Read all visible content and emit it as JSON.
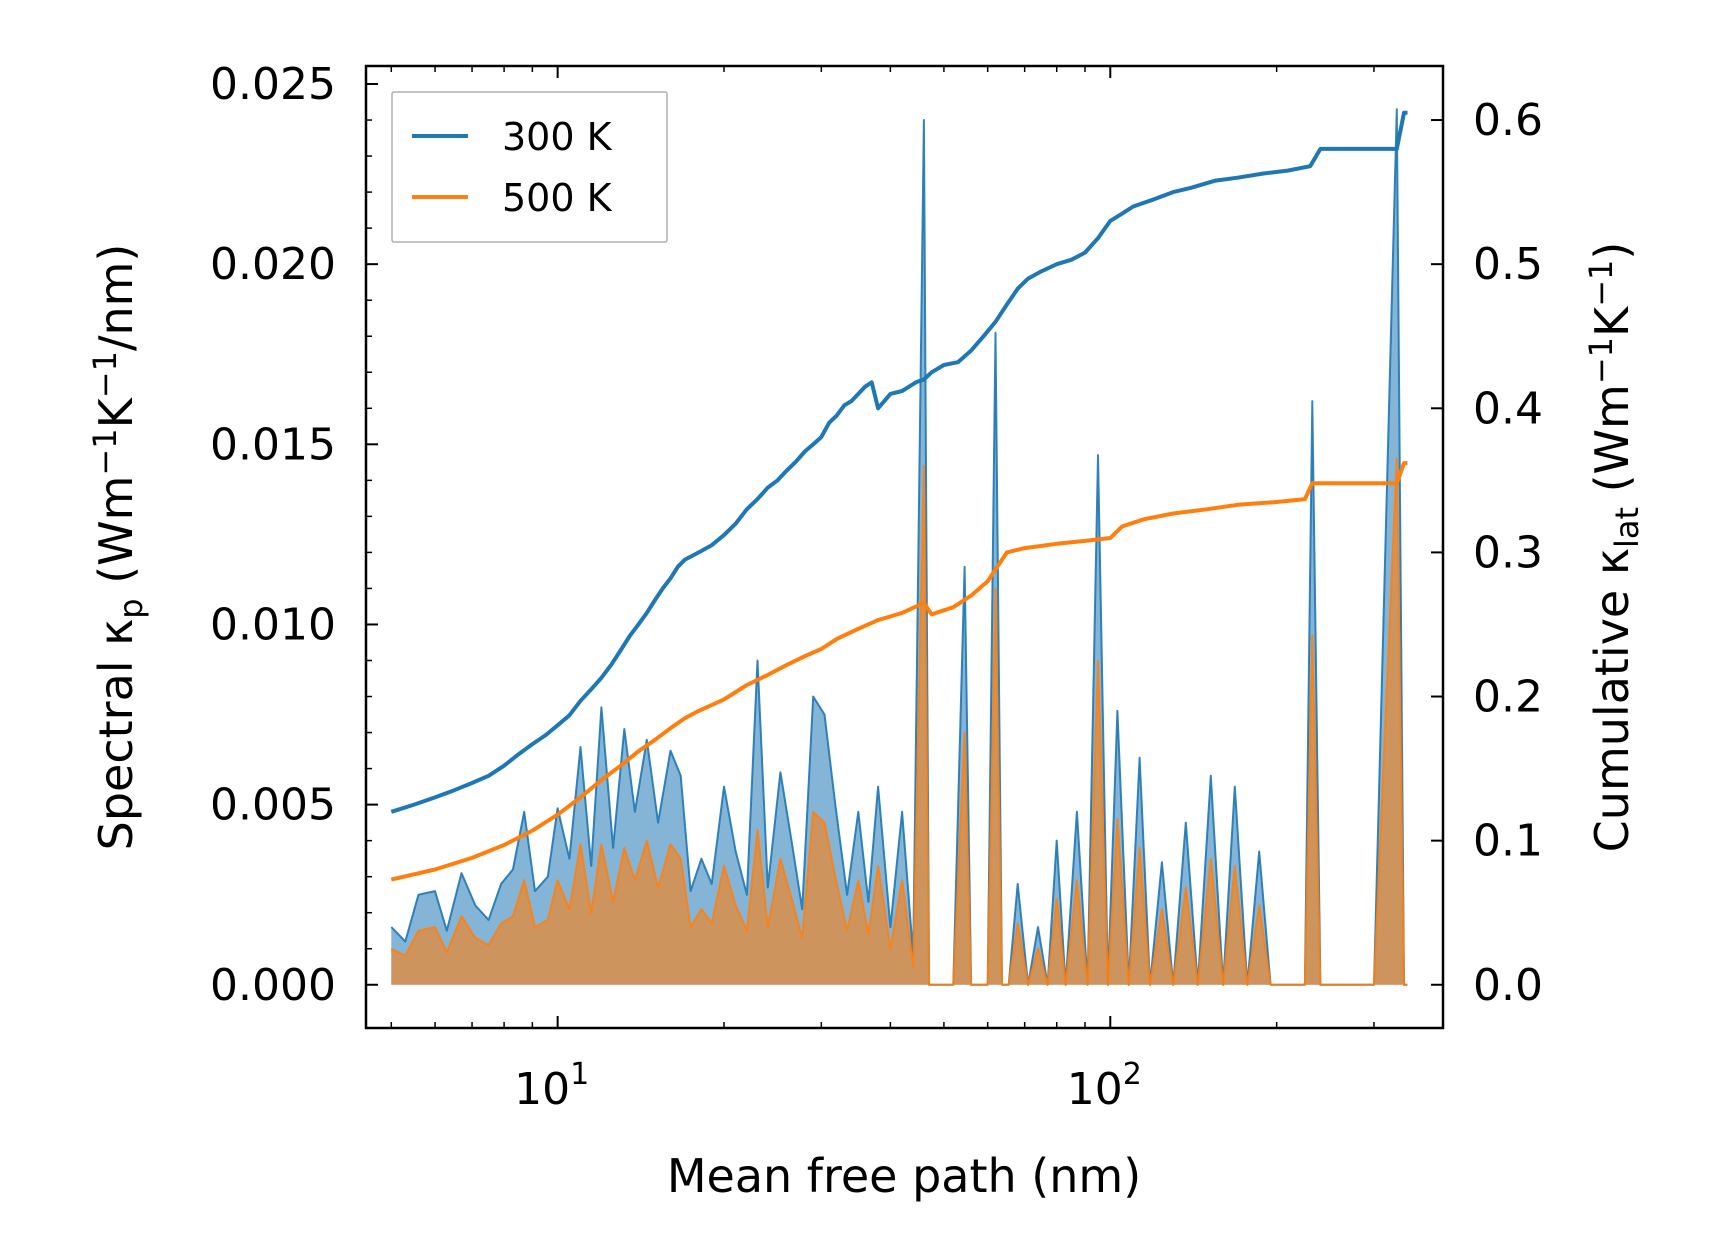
{
  "chart_data": {
    "type": "line",
    "title": "",
    "xlabel": "Mean free path (nm)",
    "ylabel_left": {
      "main": "Spectral κ",
      "sub": "p",
      "units_prefix": " (Wm",
      "exp1": "−1",
      "units_mid": "K",
      "exp2": "−1",
      "units_suffix": "/nm)"
    },
    "ylabel_right": {
      "main": "Cumulative κ",
      "sub": "lat",
      "units_prefix": " (Wm",
      "exp1": "−1",
      "units_mid": "K",
      "exp2": "−1",
      "units_suffix": ")"
    },
    "xscale": "log",
    "xlim": [
      4.5,
      400
    ],
    "ylim_left": [
      -0.0012,
      0.0255
    ],
    "ylim_right": [
      -0.03,
      0.6375
    ],
    "xticks": [
      {
        "value": 10,
        "base": "10",
        "exp": "1"
      },
      {
        "value": 100,
        "base": "10",
        "exp": "2"
      }
    ],
    "yticks_left": [
      {
        "value": 0.0,
        "label": "0.000"
      },
      {
        "value": 0.005,
        "label": "0.005"
      },
      {
        "value": 0.01,
        "label": "0.010"
      },
      {
        "value": 0.015,
        "label": "0.015"
      },
      {
        "value": 0.02,
        "label": "0.020"
      },
      {
        "value": 0.025,
        "label": "0.025"
      }
    ],
    "yticks_right": [
      {
        "value": 0.0,
        "label": "0.0"
      },
      {
        "value": 0.1,
        "label": "0.1"
      },
      {
        "value": 0.2,
        "label": "0.2"
      },
      {
        "value": 0.3,
        "label": "0.3"
      },
      {
        "value": 0.4,
        "label": "0.4"
      },
      {
        "value": 0.5,
        "label": "0.5"
      },
      {
        "value": 0.6,
        "label": "0.6"
      }
    ],
    "legend": {
      "placement": "top-left"
    },
    "series": [
      {
        "name": "300 K",
        "color": "#1f77b4",
        "spectral": {
          "axis": "left",
          "x": [
            5.0,
            5.3,
            5.6,
            6.0,
            6.3,
            6.7,
            7.1,
            7.5,
            7.9,
            8.3,
            8.7,
            9.1,
            9.6,
            10.0,
            10.5,
            11.0,
            11.5,
            12.0,
            12.6,
            13.2,
            13.8,
            14.5,
            15.2,
            16.0,
            16.7,
            17.4,
            18.2,
            19.0,
            20.0,
            21.0,
            22.0,
            23.0,
            24.0,
            25.3,
            26.5,
            27.7,
            29.0,
            30.4,
            31.8,
            33.4,
            35.0,
            36.5,
            38.0,
            40.0,
            42.0,
            44.0,
            46.0,
            47.0,
            48.5,
            50.0,
            52.0,
            54.5,
            56.0,
            58.0,
            60.0,
            62.0,
            63.7,
            65.5,
            68.0,
            71.0,
            74.0,
            77.0,
            80.0,
            83.0,
            87.0,
            91.0,
            95.0,
            99.0,
            103.0,
            108.0,
            113.0,
            118.0,
            124.0,
            130.0,
            137.0,
            144.0,
            152.0,
            160.0,
            168.0,
            177.0,
            186.0,
            195.0,
            205.0,
            215.0,
            225.0,
            232.0,
            240.0,
            250.0,
            300.0,
            330.0,
            340.0,
            345.0
          ],
          "y": [
            0.0016,
            0.0012,
            0.0025,
            0.0026,
            0.0015,
            0.0031,
            0.0022,
            0.0018,
            0.0028,
            0.0032,
            0.0048,
            0.0026,
            0.003,
            0.0049,
            0.0035,
            0.0066,
            0.0033,
            0.0077,
            0.0038,
            0.0071,
            0.0048,
            0.0068,
            0.0045,
            0.0065,
            0.0058,
            0.0026,
            0.0035,
            0.0028,
            0.0055,
            0.0037,
            0.0025,
            0.009,
            0.0027,
            0.0059,
            0.004,
            0.0021,
            0.008,
            0.0075,
            0.005,
            0.0025,
            0.0048,
            0.0023,
            0.0055,
            0.0016,
            0.0048,
            0.0008,
            0.024,
            0.0,
            0.0,
            0.0,
            0.0,
            0.0116,
            0.0,
            0.0,
            0.0,
            0.0181,
            0.0,
            0.0,
            0.0028,
            0.0,
            0.0016,
            0.0,
            0.004,
            0.0,
            0.0048,
            0.0,
            0.0147,
            0.0,
            0.0076,
            0.0,
            0.0063,
            0.0,
            0.0034,
            0.0,
            0.0045,
            0.0,
            0.0058,
            0.0,
            0.0055,
            0.0,
            0.0037,
            0.0,
            0.0,
            0.0,
            0.0,
            0.0162,
            0.0,
            0.0,
            0.0,
            0.0243,
            0.0,
            0.0
          ]
        },
        "cumulative": {
          "axis": "right",
          "x": [
            5.0,
            5.5,
            6.0,
            6.5,
            7.0,
            7.5,
            8.0,
            8.5,
            9.0,
            9.5,
            10.0,
            10.5,
            11.0,
            11.5,
            12.0,
            12.5,
            13.0,
            13.5,
            14.0,
            14.5,
            15.0,
            15.5,
            16.0,
            16.5,
            17.0,
            18.0,
            19.0,
            20.0,
            21.0,
            22.0,
            23.0,
            24.0,
            25.0,
            26.0,
            27.0,
            28.0,
            29.0,
            30.0,
            31.0,
            32.0,
            33.0,
            34.0,
            35.0,
            36.0,
            37.0,
            38.0,
            40.0,
            42.0,
            44.5,
            46.0,
            47.5,
            50.0,
            53.0,
            56.0,
            59.0,
            62.0,
            65.0,
            68.0,
            71.0,
            75.0,
            80.0,
            85.0,
            90.0,
            95.0,
            100.0,
            105.0,
            110.0,
            120.0,
            130.0,
            140.0,
            155.0,
            170.0,
            190.0,
            210.0,
            230.0,
            240.0,
            300.0,
            330.0,
            340.0,
            345.0
          ],
          "y": [
            0.12,
            0.125,
            0.13,
            0.135,
            0.14,
            0.145,
            0.152,
            0.16,
            0.167,
            0.173,
            0.18,
            0.187,
            0.197,
            0.205,
            0.213,
            0.222,
            0.232,
            0.242,
            0.25,
            0.258,
            0.267,
            0.275,
            0.282,
            0.29,
            0.295,
            0.3,
            0.305,
            0.312,
            0.32,
            0.33,
            0.337,
            0.345,
            0.35,
            0.357,
            0.363,
            0.37,
            0.375,
            0.38,
            0.39,
            0.395,
            0.402,
            0.405,
            0.41,
            0.415,
            0.418,
            0.4,
            0.41,
            0.412,
            0.418,
            0.42,
            0.425,
            0.43,
            0.432,
            0.44,
            0.45,
            0.46,
            0.472,
            0.483,
            0.49,
            0.495,
            0.5,
            0.503,
            0.508,
            0.518,
            0.53,
            0.535,
            0.54,
            0.545,
            0.55,
            0.553,
            0.558,
            0.56,
            0.563,
            0.565,
            0.568,
            0.58,
            0.58,
            0.58,
            0.605,
            0.605
          ]
        }
      },
      {
        "name": "500 K",
        "color": "#ff7f0e",
        "spectral": {
          "axis": "left",
          "x": [
            5.0,
            5.3,
            5.6,
            6.0,
            6.3,
            6.7,
            7.1,
            7.5,
            7.9,
            8.3,
            8.7,
            9.1,
            9.6,
            10.0,
            10.5,
            11.0,
            11.5,
            12.0,
            12.6,
            13.2,
            13.8,
            14.5,
            15.2,
            16.0,
            16.7,
            17.4,
            18.2,
            19.0,
            20.0,
            21.0,
            22.0,
            23.0,
            24.0,
            25.3,
            26.5,
            27.7,
            29.0,
            30.4,
            31.8,
            33.4,
            35.0,
            36.5,
            38.0,
            40.0,
            42.0,
            44.0,
            46.0,
            47.0,
            48.5,
            50.0,
            52.0,
            54.5,
            56.0,
            58.0,
            60.0,
            62.0,
            63.7,
            65.5,
            68.0,
            71.0,
            74.0,
            77.0,
            80.0,
            83.0,
            87.0,
            91.0,
            95.0,
            99.0,
            103.0,
            108.0,
            113.0,
            118.0,
            124.0,
            130.0,
            137.0,
            144.0,
            152.0,
            160.0,
            168.0,
            177.0,
            186.0,
            195.0,
            205.0,
            215.0,
            225.0,
            232.0,
            240.0,
            250.0,
            300.0,
            330.0,
            340.0,
            345.0
          ],
          "y": [
            0.001,
            0.0008,
            0.0015,
            0.0016,
            0.0009,
            0.0019,
            0.0013,
            0.0011,
            0.0017,
            0.0019,
            0.0029,
            0.0016,
            0.0018,
            0.0029,
            0.0021,
            0.0039,
            0.002,
            0.0039,
            0.0023,
            0.0038,
            0.0029,
            0.004,
            0.0027,
            0.0039,
            0.0035,
            0.0016,
            0.0021,
            0.0017,
            0.0033,
            0.0022,
            0.0015,
            0.0043,
            0.0016,
            0.0035,
            0.0024,
            0.0013,
            0.0048,
            0.0045,
            0.003,
            0.0015,
            0.0029,
            0.0014,
            0.0033,
            0.001,
            0.0029,
            0.0005,
            0.0144,
            0.0,
            0.0,
            0.0,
            0.0,
            0.007,
            0.0,
            0.0,
            0.0,
            0.011,
            0.0,
            0.0,
            0.0017,
            0.0,
            0.001,
            0.0,
            0.0024,
            0.0,
            0.0029,
            0.0,
            0.009,
            0.0,
            0.0046,
            0.0,
            0.0038,
            0.0,
            0.0021,
            0.0,
            0.0027,
            0.0,
            0.0035,
            0.0,
            0.0033,
            0.0,
            0.0022,
            0.0,
            0.0,
            0.0,
            0.0,
            0.0097,
            0.0,
            0.0,
            0.0,
            0.0146,
            0.0,
            0.0
          ]
        },
        "cumulative": {
          "axis": "right",
          "x": [
            5.0,
            6.0,
            7.0,
            8.0,
            9.0,
            10.0,
            11.0,
            12.0,
            13.0,
            14.0,
            15.0,
            16.0,
            17.0,
            18.0,
            20.0,
            22.0,
            24.0,
            26.0,
            28.0,
            30.0,
            32.0,
            35.0,
            38.0,
            42.0,
            46.0,
            47.5,
            52.0,
            56.0,
            60.0,
            65.0,
            70.0,
            80.0,
            90.0,
            100.0,
            105.0,
            115.0,
            130.0,
            150.0,
            170.0,
            200.0,
            225.0,
            232.0,
            300.0,
            330.0,
            340.0,
            345.0
          ],
          "y": [
            0.073,
            0.08,
            0.088,
            0.097,
            0.107,
            0.118,
            0.13,
            0.142,
            0.152,
            0.162,
            0.17,
            0.178,
            0.185,
            0.19,
            0.198,
            0.208,
            0.215,
            0.222,
            0.228,
            0.233,
            0.24,
            0.247,
            0.253,
            0.258,
            0.265,
            0.257,
            0.262,
            0.27,
            0.28,
            0.3,
            0.303,
            0.306,
            0.308,
            0.31,
            0.318,
            0.323,
            0.327,
            0.33,
            0.333,
            0.335,
            0.337,
            0.348,
            0.348,
            0.348,
            0.362,
            0.362
          ]
        }
      }
    ]
  }
}
